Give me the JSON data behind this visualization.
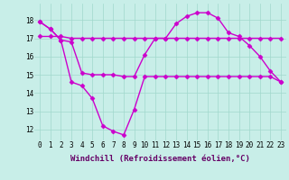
{
  "background_color": "#c8eee8",
  "grid_color": "#a0d8cc",
  "line_color": "#cc00cc",
  "marker": "D",
  "markersize": 2.5,
  "linewidth": 1.0,
  "xlabel": "Windchill (Refroidissement éolien,°C)",
  "xlabel_fontsize": 6.5,
  "tick_fontsize": 5.5,
  "xlim": [
    -0.5,
    23.5
  ],
  "ylim": [
    11.4,
    18.9
  ],
  "yticks": [
    12,
    13,
    14,
    15,
    16,
    17,
    18
  ],
  "xticks": [
    0,
    1,
    2,
    3,
    4,
    5,
    6,
    7,
    8,
    9,
    10,
    11,
    12,
    13,
    14,
    15,
    16,
    17,
    18,
    19,
    20,
    21,
    22,
    23
  ],
  "series1": [
    17.9,
    17.5,
    16.9,
    16.8,
    15.1,
    15.0,
    15.0,
    15.0,
    14.9,
    14.9,
    16.1,
    17.0,
    17.0,
    17.8,
    18.2,
    18.4,
    18.4,
    18.1,
    17.3,
    17.1,
    16.6,
    16.0,
    15.2,
    14.6
  ],
  "series2": [
    17.1,
    17.1,
    17.1,
    17.0,
    17.0,
    17.0,
    17.0,
    17.0,
    17.0,
    17.0,
    17.0,
    17.0,
    17.0,
    17.0,
    17.0,
    17.0,
    17.0,
    17.0,
    17.0,
    17.0,
    17.0,
    17.0,
    17.0,
    17.0
  ],
  "series3": [
    17.9,
    17.5,
    16.9,
    14.6,
    14.4,
    13.7,
    12.2,
    11.9,
    11.7,
    13.1,
    14.9,
    14.9,
    14.9,
    14.9,
    14.9,
    14.9,
    14.9,
    14.9,
    14.9,
    14.9,
    14.9,
    14.9,
    14.9,
    14.6
  ]
}
